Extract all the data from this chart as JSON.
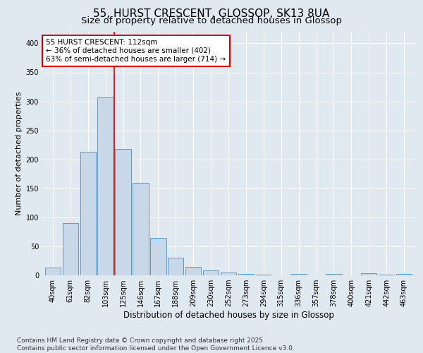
{
  "title": "55, HURST CRESCENT, GLOSSOP, SK13 8UA",
  "subtitle": "Size of property relative to detached houses in Glossop",
  "xlabel": "Distribution of detached houses by size in Glossop",
  "ylabel": "Number of detached properties",
  "bar_color": "#c8d8e8",
  "bar_edge_color": "#5a8ab0",
  "background_color": "#e0e8f0",
  "grid_color": "#ffffff",
  "categories": [
    "40sqm",
    "61sqm",
    "82sqm",
    "103sqm",
    "125sqm",
    "146sqm",
    "167sqm",
    "188sqm",
    "209sqm",
    "230sqm",
    "252sqm",
    "273sqm",
    "294sqm",
    "315sqm",
    "336sqm",
    "357sqm",
    "378sqm",
    "400sqm",
    "421sqm",
    "442sqm",
    "463sqm"
  ],
  "values": [
    14,
    90,
    213,
    307,
    218,
    160,
    65,
    30,
    15,
    9,
    5,
    2,
    1,
    0,
    3,
    0,
    3,
    0,
    4,
    1,
    3
  ],
  "red_line_x": 3.5,
  "annotation_text": "55 HURST CRESCENT: 112sqm\n← 36% of detached houses are smaller (402)\n63% of semi-detached houses are larger (714) →",
  "annotation_box_color": "#ffffff",
  "annotation_box_edge": "#cc0000",
  "red_line_color": "#cc0000",
  "ylim": [
    0,
    420
  ],
  "yticks": [
    0,
    50,
    100,
    150,
    200,
    250,
    300,
    350,
    400
  ],
  "footer_text": "Contains HM Land Registry data © Crown copyright and database right 2025.\nContains public sector information licensed under the Open Government Licence v3.0.",
  "title_fontsize": 11,
  "subtitle_fontsize": 9.5,
  "xlabel_fontsize": 8.5,
  "ylabel_fontsize": 8,
  "tick_fontsize": 7,
  "annotation_fontsize": 7.5,
  "footer_fontsize": 6.5
}
